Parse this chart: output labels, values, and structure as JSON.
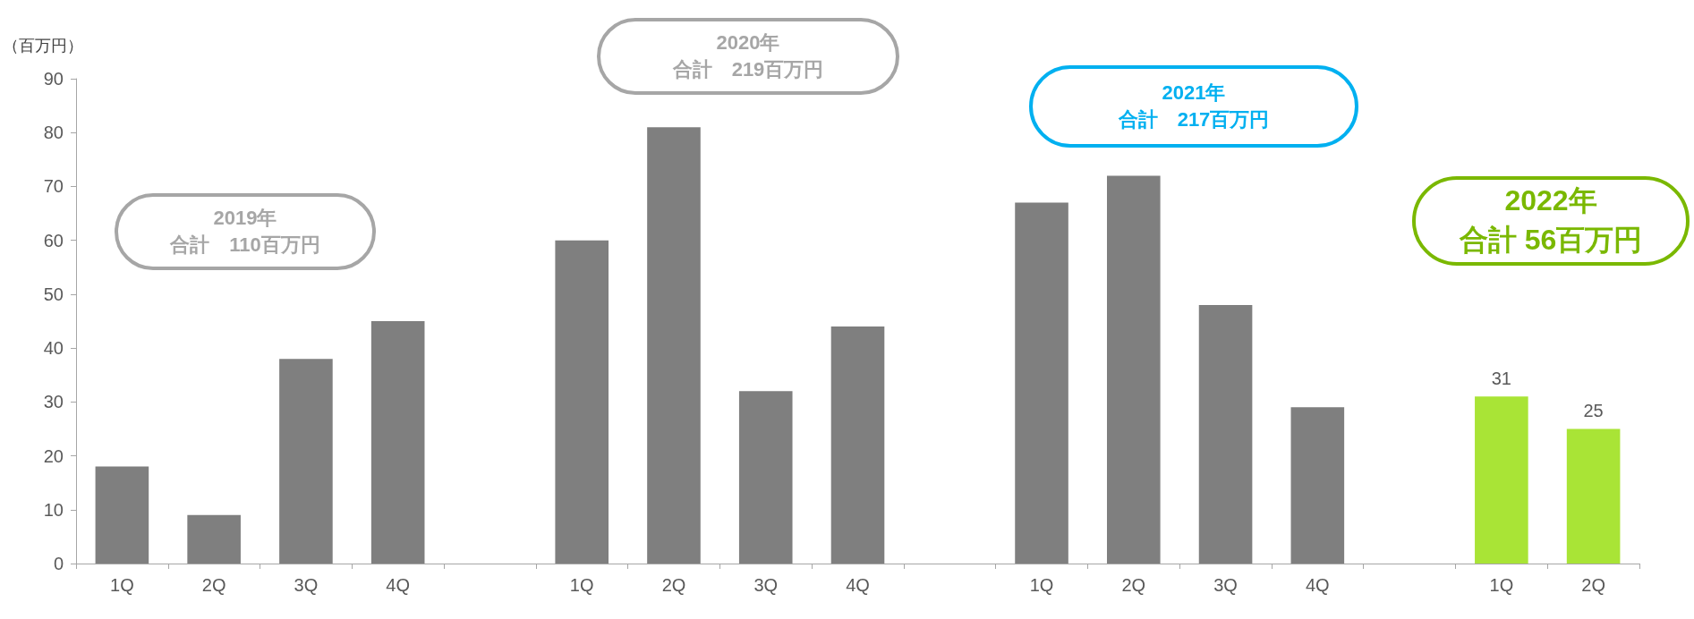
{
  "chart_data": {
    "type": "bar",
    "ylabel": "（百万円）",
    "categories": [
      "1Q",
      "2Q",
      "3Q",
      "4Q",
      null,
      "1Q",
      "2Q",
      "3Q",
      "4Q",
      null,
      "1Q",
      "2Q",
      "3Q",
      "4Q",
      null,
      "1Q",
      "2Q"
    ],
    "values": [
      18,
      9,
      38,
      45,
      null,
      60,
      81,
      32,
      44,
      null,
      67,
      72,
      48,
      29,
      null,
      31,
      25
    ],
    "colors": [
      "#7f7f7f",
      "#7f7f7f",
      "#7f7f7f",
      "#7f7f7f",
      "#7f7f7f",
      "#7f7f7f",
      "#7f7f7f",
      "#7f7f7f",
      "#7f7f7f",
      "#7f7f7f",
      "#7f7f7f",
      "#7f7f7f",
      "#7f7f7f",
      "#7f7f7f",
      "#7f7f7f",
      "#a9e436",
      "#a9e436"
    ],
    "value_labels": [
      null,
      null,
      null,
      null,
      null,
      null,
      null,
      null,
      null,
      null,
      null,
      null,
      null,
      null,
      null,
      "31",
      "25"
    ],
    "ylim": [
      0,
      90
    ],
    "yticks": [
      0,
      10,
      20,
      30,
      40,
      50,
      60,
      70,
      80,
      90
    ],
    "grid": false,
    "annotations": [
      "2019年",
      "合計　110百万円",
      "2020年",
      "合計　219百万円",
      "2021年",
      "合計　217百万円",
      "2022年",
      "合計 56百万円"
    ]
  }
}
